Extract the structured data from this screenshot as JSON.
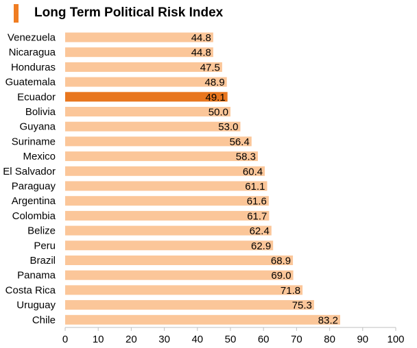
{
  "colors": {
    "accent": "#f07d22",
    "bar": "#fbc699",
    "highlight": "#e8761e",
    "axis": "#bfbfbf"
  },
  "chart_data": {
    "type": "bar",
    "orientation": "horizontal",
    "title": "Long Term Political Risk Index",
    "xlabel": "",
    "ylabel": "",
    "xlim": [
      0,
      100
    ],
    "ticks": [
      0,
      10,
      20,
      30,
      40,
      50,
      60,
      70,
      80,
      90,
      100
    ],
    "highlight": "Ecuador",
    "grid": false,
    "categories": [
      "Venezuela",
      "Nicaragua",
      "Honduras",
      "Guatemala",
      "Ecuador",
      "Bolivia",
      "Guyana",
      "Suriname",
      "Mexico",
      "El Salvador",
      "Paraguay",
      "Argentina",
      "Colombia",
      "Belize",
      "Peru",
      "Brazil",
      "Panama",
      "Costa Rica",
      "Uruguay",
      "Chile"
    ],
    "values": [
      44.8,
      44.8,
      47.5,
      48.9,
      49.1,
      50.0,
      53.0,
      56.4,
      58.3,
      60.4,
      61.1,
      61.6,
      61.7,
      62.4,
      62.9,
      68.9,
      69.0,
      71.8,
      75.3,
      83.2
    ],
    "labels": [
      "44.8",
      "44.8",
      "47.5",
      "48.9",
      "49.1",
      "50.0",
      "53.0",
      "56.4",
      "58.3",
      "60.4",
      "61.1",
      "61.6",
      "61.7",
      "62.4",
      "62.9",
      "68.9",
      "69.0",
      "71.8",
      "75.3",
      "83.2"
    ]
  }
}
